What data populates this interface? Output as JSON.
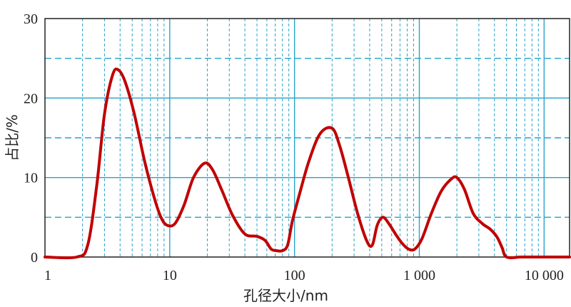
{
  "chart_data": {
    "type": "line",
    "xlabel": "孔径大小/nm",
    "ylabel": "占比/%",
    "x_scale": "log",
    "xlim": [
      1,
      16000
    ],
    "ylim": [
      0,
      30
    ],
    "x_ticks": [
      {
        "value": 1,
        "label": "1"
      },
      {
        "value": 10,
        "label": "10"
      },
      {
        "value": 100,
        "label": "100"
      },
      {
        "value": 1000,
        "label": "1 000"
      },
      {
        "value": 10000,
        "label": "10 000"
      }
    ],
    "y_ticks": [
      {
        "value": 0,
        "label": "0"
      },
      {
        "value": 10,
        "label": "10"
      },
      {
        "value": 20,
        "label": "20"
      },
      {
        "value": 30,
        "label": "30"
      }
    ],
    "y_minor_dashed": [
      5,
      15,
      25
    ],
    "grid": true,
    "colors": {
      "line": "#c00000",
      "grid": "#29a3c9"
    },
    "series": [
      {
        "x": [
          1,
          1.8,
          2.2,
          2.6,
          3.0,
          3.5,
          3.9,
          4.4,
          5.2,
          6.3,
          7.5,
          8.5,
          9.5,
          11,
          13,
          15.5,
          19,
          22,
          26,
          32,
          40,
          50,
          58,
          65,
          72,
          80,
          88,
          96,
          110,
          130,
          160,
          200,
          230,
          270,
          320,
          380,
          420,
          460,
          510,
          570,
          650,
          730,
          820,
          920,
          1050,
          1250,
          1500,
          1800,
          2000,
          2300,
          2700,
          3200,
          3700,
          4200,
          4600,
          5000,
          6500,
          8000,
          10000,
          14000,
          16000
        ],
        "y": [
          0,
          0,
          1.5,
          9,
          18,
          23,
          23.5,
          22,
          18,
          12,
          7.5,
          5,
          4,
          4.2,
          6.5,
          10,
          11.8,
          11,
          8.5,
          5.2,
          2.9,
          2.6,
          2.1,
          1,
          0.8,
          0.8,
          1.5,
          4.5,
          8,
          12,
          15.5,
          16.2,
          14,
          10,
          5.5,
          2,
          1.5,
          4,
          5,
          4.2,
          2.8,
          1.7,
          1,
          1,
          2.3,
          5.5,
          8.3,
          9.8,
          10,
          8.5,
          5.5,
          4.2,
          3.5,
          2.5,
          1.2,
          0,
          0,
          0,
          0,
          0,
          0
        ]
      }
    ]
  }
}
